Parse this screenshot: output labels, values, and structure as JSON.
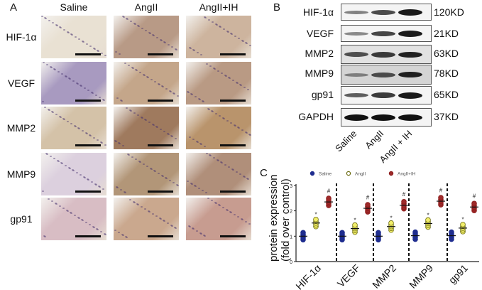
{
  "panelA": {
    "letter": "A",
    "columns": [
      "Saline",
      "AngII",
      "AngII+IH"
    ],
    "rows": [
      "HIF-1α",
      "VEGF",
      "MMP2",
      "MMP9",
      "gp91"
    ],
    "tissue_colors": [
      [
        "#e9e1d3",
        "#b89a86",
        "#cdb49e"
      ],
      [
        "#a89ac0",
        "#c4a68a",
        "#b99a84"
      ],
      [
        "#d4c2a8",
        "#9f7a5e",
        "#b9946c"
      ],
      [
        "#dcd0de",
        "#b29678",
        "#b08f7a"
      ],
      [
        "#d8bdc4",
        "#caa88e",
        "#c79c90"
      ]
    ]
  },
  "panelB": {
    "letter": "B",
    "proteins": [
      {
        "name": "HIF-1α",
        "kd": "120KD",
        "intensity": [
          0.35,
          0.65,
          0.95
        ]
      },
      {
        "name": "VEGF",
        "kd": "21KD",
        "intensity": [
          0.3,
          0.7,
          0.95
        ]
      },
      {
        "name": "MMP2",
        "kd": "63KD",
        "intensity": [
          0.6,
          0.75,
          0.9
        ]
      },
      {
        "name": "MMP9",
        "kd": "78KD",
        "intensity": [
          0.25,
          0.6,
          0.9
        ]
      },
      {
        "name": "gp91",
        "kd": "65KD",
        "intensity": [
          0.55,
          0.75,
          0.95
        ]
      },
      {
        "name": "GAPDH",
        "kd": "37KD",
        "intensity": [
          1.0,
          1.0,
          1.0
        ]
      }
    ],
    "lanes": [
      "Saline",
      "AngII",
      "AngII + IH"
    ]
  },
  "panelC": {
    "letter": "C"
  },
  "chart_data": {
    "type": "scatter",
    "title": "",
    "xlabel": "",
    "ylabel": "protein expression (fold over control)",
    "ylim": [
      0,
      3
    ],
    "yticks": [
      0,
      1,
      2,
      3
    ],
    "categories": [
      "HIF-1α",
      "VEGF",
      "MMP2",
      "MMP9",
      "gp91"
    ],
    "legend": {
      "position": "top",
      "entries": [
        "Saline",
        "AngII",
        "AngII+IH"
      ]
    },
    "series": [
      {
        "name": "Saline",
        "color": "#1f2d8f",
        "fill": "#1f2d8f",
        "values": [
          1.0,
          1.0,
          1.0,
          1.02,
          1.02
        ]
      },
      {
        "name": "AngII",
        "color": "#6b6b10",
        "fill": "#f2ee6a",
        "values": [
          1.52,
          1.3,
          1.38,
          1.5,
          1.32
        ]
      },
      {
        "name": "AngII+IH",
        "color": "#8b1a1a",
        "fill": "#9e2a2a",
        "values": [
          2.35,
          2.1,
          2.22,
          2.38,
          2.15
        ]
      }
    ],
    "annotations": {
      "AngII": "*",
      "AngII+IH": "#"
    },
    "dividers": "dashed vertical lines between categories"
  }
}
